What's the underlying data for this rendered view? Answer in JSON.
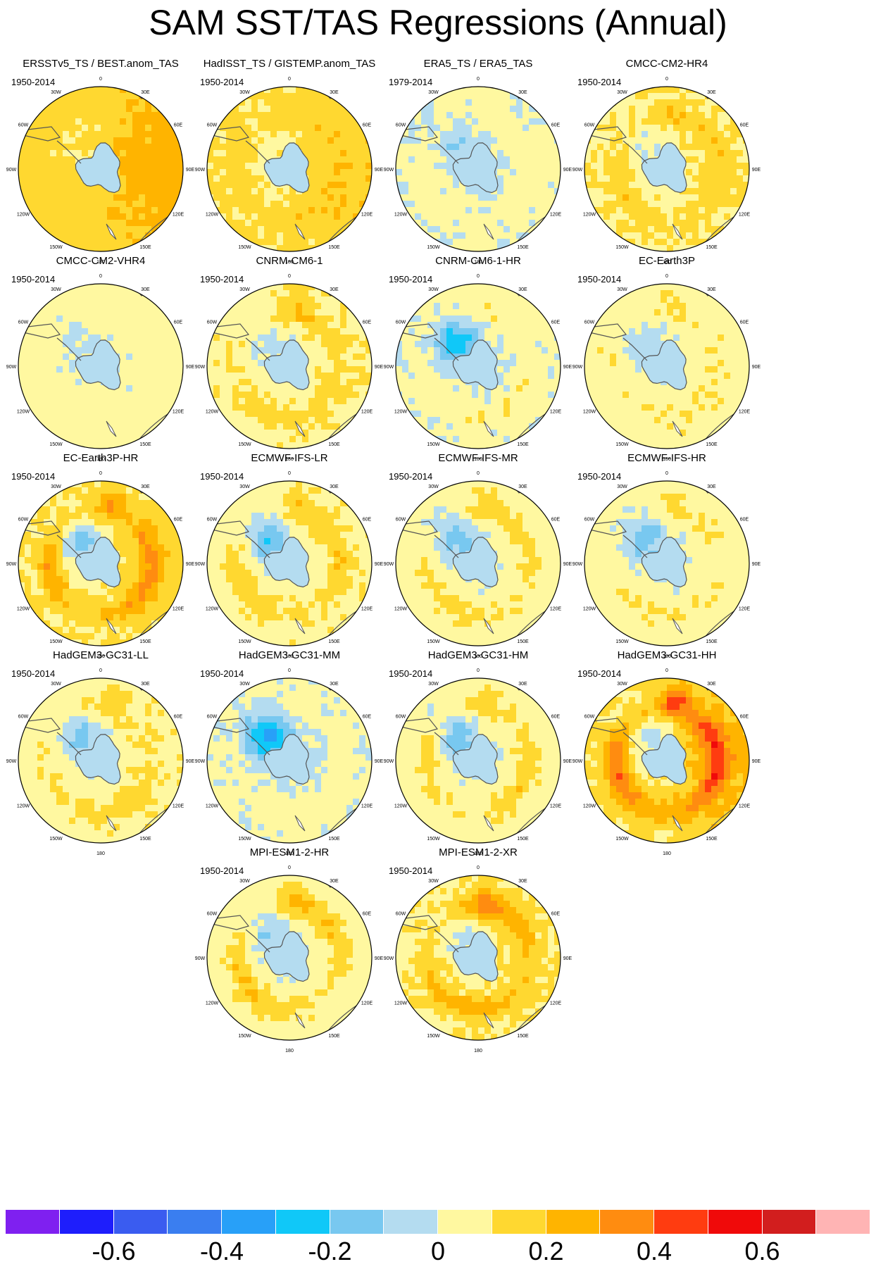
{
  "title": "SAM SST/TAS Regressions (Annual)",
  "chart_data": {
    "type": "heatmap",
    "title": "SAM SST/TAS Regressions (Annual)",
    "projection": "south polar stereographic",
    "longitude_labels": [
      "0",
      "30E",
      "60E",
      "90E",
      "120E",
      "150E",
      "180",
      "150W",
      "120W",
      "90W",
      "60W",
      "30W"
    ],
    "colorbar": {
      "levels": [
        -0.7,
        -0.6,
        -0.5,
        -0.4,
        -0.3,
        -0.2,
        -0.1,
        0,
        0.1,
        0.2,
        0.3,
        0.4,
        0.5,
        0.6,
        0.7
      ],
      "colors": [
        "#7f20f0",
        "#1e1efc",
        "#3a5cf0",
        "#3a7ef0",
        "#28a0f8",
        "#10c8f8",
        "#78c8f0",
        "#b4dcf0",
        "#fff8a0",
        "#ffd830",
        "#ffb400",
        "#ff8c10",
        "#ff3c10",
        "#f00a0a",
        "#d21e1e",
        "#ffb4b4"
      ],
      "tick_labels": [
        "-0.6",
        "-0.4",
        "-0.2",
        "0",
        "0.2",
        "0.4",
        "0.6"
      ],
      "tick_values": [
        -0.6,
        -0.4,
        -0.2,
        0,
        0.2,
        0.4,
        0.6
      ]
    },
    "panels": [
      {
        "name": "ERSSTv5_TS / BEST.anom_TAS",
        "period": "1950-2014",
        "base": 0.15,
        "ring": 0.0,
        "east": 0.1,
        "sw": -0.05,
        "polar": -0.05
      },
      {
        "name": "HadISST_TS / GISTEMP.anom_TAS",
        "period": "1950-2014",
        "base": 0.12,
        "ring": 0.05,
        "east": 0.05,
        "sw": -0.05,
        "polar": -0.05
      },
      {
        "name": "ERA5_TS / ERA5_TAS",
        "period": "1979-2014",
        "base": 0.02,
        "ring": 0.04,
        "east": 0.0,
        "sw": -0.1,
        "polar": -0.05
      },
      {
        "name": "CMCC-CM2-HR4",
        "period": "1950-2014",
        "base": 0.08,
        "ring": 0.1,
        "east": 0.02,
        "sw": -0.08,
        "polar": -0.05
      },
      {
        "name": "CMCC-CM2-VHR4",
        "period": "1950-2014",
        "base": 0.04,
        "ring": 0.02,
        "east": 0.0,
        "sw": -0.05,
        "polar": -0.05
      },
      {
        "name": "CNRM-CM6-1",
        "period": "1950-2014",
        "base": 0.07,
        "ring": 0.09,
        "east": 0.02,
        "sw": -0.12,
        "polar": -0.05
      },
      {
        "name": "CNRM-CM6-1-HR",
        "period": "1950-2014",
        "base": 0.03,
        "ring": 0.06,
        "east": 0.0,
        "sw": -0.3,
        "polar": -0.08
      },
      {
        "name": "EC-Earth3P",
        "period": "1950-2014",
        "base": 0.06,
        "ring": 0.05,
        "east": 0.0,
        "sw": -0.15,
        "polar": -0.05
      },
      {
        "name": "EC-Earth3P-HR",
        "period": "1950-2014",
        "base": 0.1,
        "ring": 0.2,
        "east": 0.05,
        "sw": -0.25,
        "polar": -0.05
      },
      {
        "name": "ECMWF-IFS-LR",
        "period": "1950-2014",
        "base": 0.06,
        "ring": 0.12,
        "east": 0.02,
        "sw": -0.25,
        "polar": -0.05
      },
      {
        "name": "ECMWF-IFS-MR",
        "period": "1950-2014",
        "base": 0.05,
        "ring": 0.1,
        "east": 0.0,
        "sw": -0.2,
        "polar": -0.05
      },
      {
        "name": "ECMWF-IFS-HR",
        "period": "1950-2014",
        "base": 0.04,
        "ring": 0.08,
        "east": 0.0,
        "sw": -0.2,
        "polar": -0.05
      },
      {
        "name": "HadGEM3-GC31-LL",
        "period": "1950-2014",
        "base": 0.06,
        "ring": 0.08,
        "east": 0.02,
        "sw": -0.2,
        "polar": -0.05
      },
      {
        "name": "HadGEM3-GC31-MM",
        "period": "1950-2014",
        "base": 0.02,
        "ring": 0.05,
        "east": 0.0,
        "sw": -0.35,
        "polar": -0.1
      },
      {
        "name": "HadGEM3-GC31-HM",
        "period": "1950-2014",
        "base": 0.05,
        "ring": 0.12,
        "east": 0.0,
        "sw": -0.22,
        "polar": -0.05
      },
      {
        "name": "HadGEM3-GC31-HH",
        "period": "1950-2014",
        "base": 0.12,
        "ring": 0.3,
        "east": 0.1,
        "sw": -0.15,
        "polar": -0.05
      },
      {
        "name": "MPI-ESM1-2-HR",
        "period": "1950-2014",
        "base": 0.05,
        "ring": 0.15,
        "east": 0.0,
        "sw": -0.15,
        "polar": -0.05
      },
      {
        "name": "MPI-ESM1-2-XR",
        "period": "1950-2014",
        "base": 0.08,
        "ring": 0.2,
        "east": 0.02,
        "sw": -0.1,
        "polar": -0.05
      }
    ]
  }
}
